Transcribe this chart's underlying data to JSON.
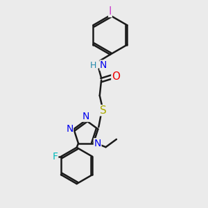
{
  "background_color": "#ebebeb",
  "bond_color": "#1a1a1a",
  "bond_width": 1.8,
  "atom_colors": {
    "N": "#0000ee",
    "O": "#ee0000",
    "S": "#aaaa00",
    "F": "#00bbbb",
    "I": "#cc44cc",
    "H": "#2288aa",
    "C": "#1a1a1a"
  },
  "font_size": 10,
  "fig_size": [
    3.0,
    3.0
  ],
  "dpi": 100
}
